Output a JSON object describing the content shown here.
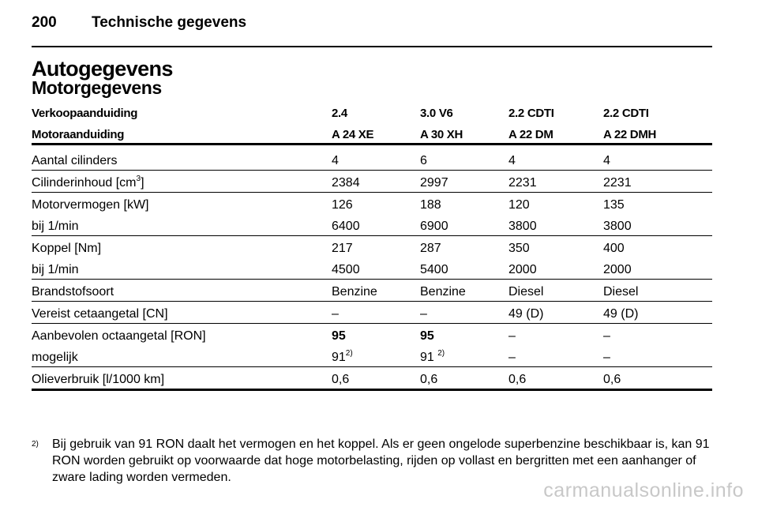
{
  "header": {
    "page_number": "200",
    "section": "Technische gegevens"
  },
  "title": "Autogegevens",
  "subtitle": "Motorgegevens",
  "table": {
    "headers": [
      [
        "Verkoopaanduiding",
        "2.4",
        "3.0 V6",
        "2.2 CDTI",
        "2.2 CDTI"
      ],
      [
        "Motoraanduiding",
        "A 24 XE",
        "A 30 XH",
        "A 22 DM",
        "A 22 DMH"
      ]
    ],
    "groups": [
      {
        "rows": [
          {
            "cells": [
              "Aantal cilinders",
              "4",
              "6",
              "4",
              "4"
            ]
          }
        ]
      },
      {
        "rows": [
          {
            "cells": [
              "Cilinderinhoud [cm",
              "2384",
              "2997",
              "2231",
              "2231"
            ],
            "sup": "3",
            "after": "]"
          }
        ]
      },
      {
        "rows": [
          {
            "cells": [
              "Motorvermogen [kW]",
              "126",
              "188",
              "120",
              "135"
            ]
          },
          {
            "cells": [
              "bij 1/min",
              "6400",
              "6900",
              "3800",
              "3800"
            ]
          }
        ]
      },
      {
        "rows": [
          {
            "cells": [
              "Koppel [Nm]",
              "217",
              "287",
              "350",
              "400"
            ]
          },
          {
            "cells": [
              "bij 1/min",
              "4500",
              "5400",
              "2000",
              "2000"
            ]
          }
        ]
      },
      {
        "rows": [
          {
            "cells": [
              "Brandstofsoort",
              "Benzine",
              "Benzine",
              "Diesel",
              "Diesel"
            ]
          }
        ]
      },
      {
        "rows": [
          {
            "cells": [
              "Vereist cetaangetal [CN]",
              "–",
              "–",
              "49 (D)",
              "49 (D)"
            ]
          }
        ]
      },
      {
        "rows": [
          {
            "cells": [
              "Aanbevolen octaangetal [RON]",
              "95",
              "95",
              "–",
              "–"
            ]
          },
          {
            "cells": [
              "mogelijk",
              "91",
              "91 ",
              "–",
              "–"
            ],
            "sup1": "2)",
            "sup2": "2)"
          }
        ]
      },
      {
        "rows": [
          {
            "cells": [
              "Olieverbruik [l/1000 km]",
              "0,6",
              "0,6",
              "0,6",
              "0,6"
            ]
          }
        ]
      }
    ]
  },
  "footnote": {
    "mark": "2)",
    "text": "Bij gebruik van 91 RON daalt het vermogen en het koppel. Als er geen ongelode superbenzine beschikbaar is, kan 91 RON worden gebruikt op voorwaarde dat hoge motorbelasting, rijden op vollast en bergritten met een aanhanger of zware lading worden vermeden."
  },
  "watermark": "carmanualsonline.info"
}
